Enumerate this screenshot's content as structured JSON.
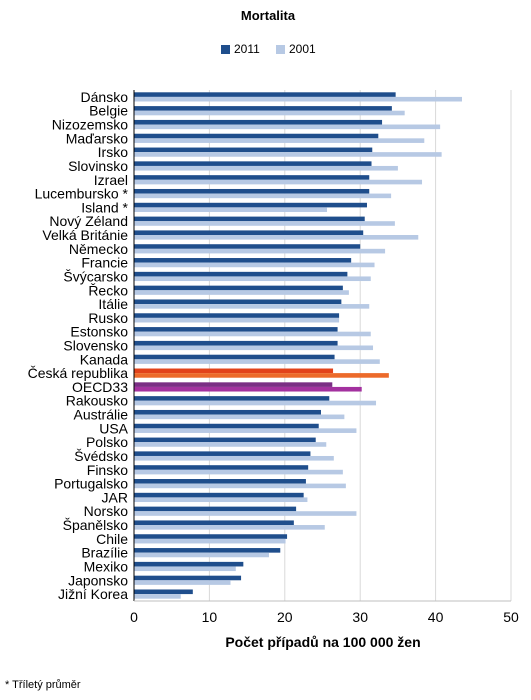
{
  "footnote": "* Tříletý průměr",
  "colors": {
    "series_2011": "#1f4e8c",
    "series_2001": "#b7c9e4",
    "highlight_cz_2011": "#e2421a",
    "highlight_cz_2001": "#ec6a2a",
    "highlight_oecd_2011": "#7a2e84",
    "highlight_oecd_2001": "#a3319f",
    "grid": "#d9d9d9",
    "axis": "#000000"
  },
  "chart_data": {
    "type": "bar",
    "orientation": "horizontal",
    "title": "Mortalita",
    "xlabel": "Počet případů na 100 000 žen",
    "xlim": [
      0,
      50
    ],
    "xticks": [
      0,
      10,
      20,
      30,
      40,
      50
    ],
    "grid": true,
    "legend_position": "top",
    "categories": [
      "Dánsko",
      "Belgie",
      "Nizozemsko",
      "Maďarsko",
      "Irsko",
      "Slovinsko",
      "Izrael",
      "Lucembursko *",
      "Island *",
      "Nový Zéland",
      "Velká Británie",
      "Německo",
      "Francie",
      "Švýcarsko",
      "Řecko",
      "Itálie",
      "Rusko",
      "Estonsko",
      "Slovensko",
      "Kanada",
      "Česká republika",
      "OECD33",
      "Rakousko",
      "Austrálie",
      "USA",
      "Polsko",
      "Švédsko",
      "Finsko",
      "Portugalsko",
      "JAR",
      "Norsko",
      "Španělsko",
      "Chile",
      "Brazílie",
      "Mexiko",
      "Japonsko",
      "Jižní Korea"
    ],
    "highlighted_categories": [
      "Česká republika",
      "OECD33"
    ],
    "series": [
      {
        "name": "2011",
        "values": [
          34.7,
          34.2,
          32.9,
          32.4,
          31.6,
          31.5,
          31.2,
          31.2,
          30.9,
          30.6,
          30.4,
          30.0,
          28.8,
          28.3,
          27.7,
          27.5,
          27.2,
          27.0,
          27.0,
          26.6,
          26.4,
          26.3,
          25.9,
          24.8,
          24.5,
          24.1,
          23.4,
          23.1,
          22.8,
          22.5,
          21.5,
          21.2,
          20.3,
          19.4,
          14.5,
          14.2,
          7.8
        ]
      },
      {
        "name": "2001",
        "values": [
          43.5,
          35.9,
          40.6,
          38.5,
          40.8,
          35.0,
          38.2,
          34.1,
          25.6,
          34.6,
          37.7,
          33.3,
          31.9,
          31.4,
          28.5,
          31.2,
          27.2,
          31.4,
          31.7,
          32.6,
          33.8,
          30.2,
          32.1,
          27.9,
          29.5,
          25.5,
          26.5,
          27.7,
          28.1,
          23.0,
          29.5,
          25.3,
          20.1,
          17.9,
          13.5,
          12.8,
          6.2
        ]
      }
    ]
  }
}
